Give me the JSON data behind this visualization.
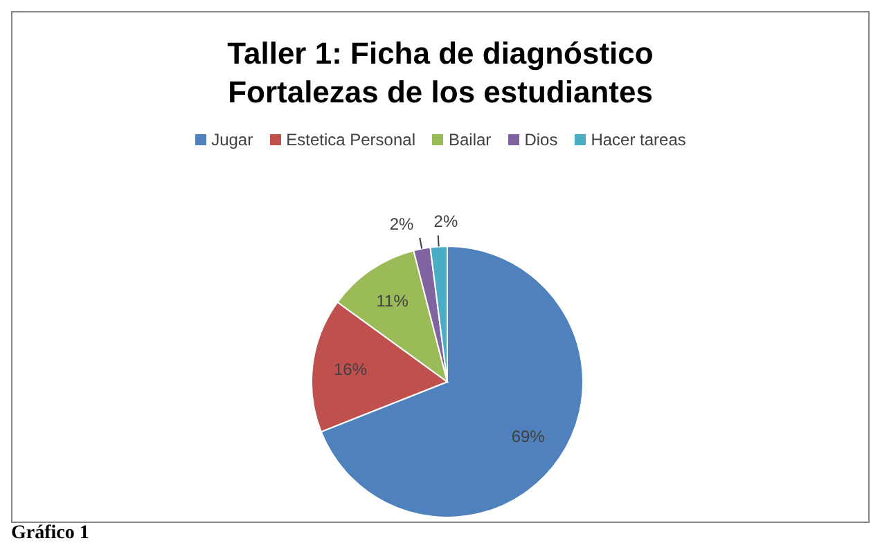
{
  "chart_data": {
    "type": "pie",
    "title": "Taller 1: Ficha de diagnóstico\nFortalezas de los estudiantes",
    "categories": [
      "Jugar",
      "Estetica Personal",
      "Bailar",
      "Dios",
      "Hacer tareas"
    ],
    "values": [
      69,
      16,
      11,
      2,
      2
    ],
    "colors": [
      "#4f81bd",
      "#c0504d",
      "#9bbb59",
      "#8064a2",
      "#4bacc6"
    ],
    "value_labels": [
      "69%",
      "16%",
      "11%",
      "2%",
      "2%"
    ],
    "legend": "top",
    "annotations": [
      "Gráfico 1"
    ]
  }
}
